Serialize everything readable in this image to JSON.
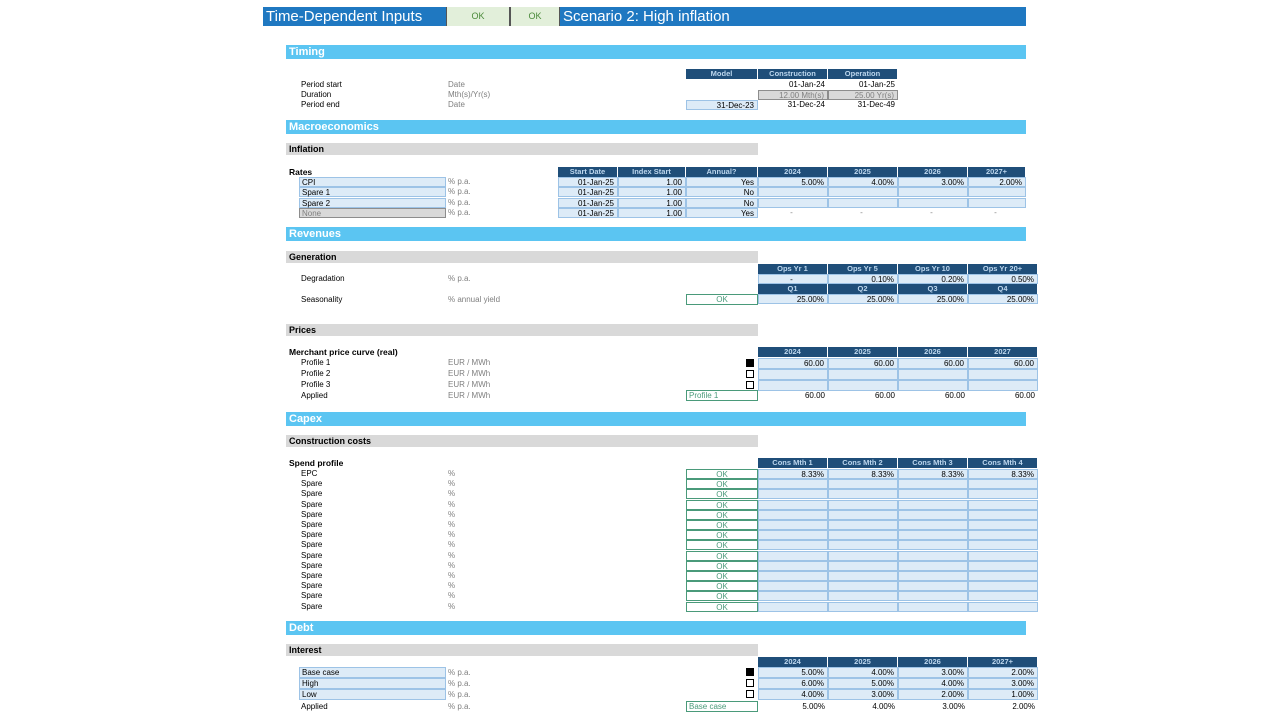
{
  "header": {
    "title": "Time-Dependent Inputs",
    "ok1": "OK",
    "ok2": "OK",
    "scenario": "Scenario 2: High inflation"
  },
  "timing": {
    "section": "Timing",
    "col_headers": [
      "Model",
      "Construction",
      "Operation"
    ],
    "rows": [
      {
        "label": "Period start",
        "unit": "Date",
        "model": "",
        "construction": "01-Jan-24",
        "operation": "01-Jan-25"
      },
      {
        "label": "Duration",
        "unit": "Mth(s)/Yr(s)",
        "model": "",
        "construction": "12.00 Mth(s)",
        "operation": "25.00 Yr(s)"
      },
      {
        "label": "Period end",
        "unit": "Date",
        "model": "31-Dec-23",
        "construction": "31-Dec-24",
        "operation": "31-Dec-49"
      }
    ]
  },
  "macro": {
    "section": "Macroeconomics",
    "sub": "Inflation",
    "group": "Rates",
    "col_headers": [
      "Start Date",
      "Index Start",
      "Annual?",
      "2024",
      "2025",
      "2026",
      "2027+"
    ],
    "rows": [
      {
        "name": "CPI",
        "unit": "% p.a.",
        "start": "01-Jan-25",
        "index": "1.00",
        "annual": "Yes",
        "v": [
          "5.00%",
          "4.00%",
          "3.00%",
          "2.00%"
        ]
      },
      {
        "name": "Spare 1",
        "unit": "% p.a.",
        "start": "01-Jan-25",
        "index": "1.00",
        "annual": "No",
        "v": [
          "",
          "",
          "",
          ""
        ]
      },
      {
        "name": "Spare 2",
        "unit": "% p.a.",
        "start": "01-Jan-25",
        "index": "1.00",
        "annual": "No",
        "v": [
          "",
          "",
          "",
          ""
        ]
      },
      {
        "name": "None",
        "unit": "% p.a.",
        "start": "01-Jan-25",
        "index": "1.00",
        "annual": "Yes",
        "v": [
          "-",
          "-",
          "-",
          "-"
        ]
      }
    ]
  },
  "revenues": {
    "section": "Revenues",
    "sub": "Generation",
    "degr_headers": [
      "Ops Yr 1",
      "Ops Yr 5",
      "Ops Yr 10",
      "Ops Yr 20+"
    ],
    "degradation": {
      "label": "Degradation",
      "unit": "% p.a.",
      "v": [
        "-",
        "0.10%",
        "0.20%",
        "0.50%"
      ]
    },
    "season_headers": [
      "Q1",
      "Q2",
      "Q3",
      "Q4"
    ],
    "seasonality": {
      "label": "Seasonality",
      "unit": "% annual yield",
      "check": "OK",
      "v": [
        "25.00%",
        "25.00%",
        "25.00%",
        "25.00%"
      ]
    },
    "prices_sub": "Prices",
    "group": "Merchant price curve (real)",
    "price_headers": [
      "2024",
      "2025",
      "2026",
      "2027"
    ],
    "profiles": [
      {
        "label": "Profile 1",
        "unit": "EUR / MWh",
        "checked": true,
        "v": [
          "60.00",
          "60.00",
          "60.00",
          "60.00"
        ]
      },
      {
        "label": "Profile 2",
        "unit": "EUR / MWh",
        "checked": false,
        "v": [
          "",
          "",
          "",
          ""
        ]
      },
      {
        "label": "Profile 3",
        "unit": "EUR / MWh",
        "checked": false,
        "v": [
          "",
          "",
          "",
          ""
        ]
      }
    ],
    "applied": {
      "label": "Applied",
      "unit": "EUR / MWh",
      "selected": "Profile 1",
      "v": [
        "60.00",
        "60.00",
        "60.00",
        "60.00"
      ]
    }
  },
  "capex": {
    "section": "Capex",
    "sub": "Construction costs",
    "group": "Spend profile",
    "headers": [
      "Cons Mth 1",
      "Cons Mth 2",
      "Cons Mth 3",
      "Cons Mth 4"
    ],
    "rows": [
      {
        "label": "EPC",
        "unit": "%",
        "check": "OK",
        "v": [
          "8.33%",
          "8.33%",
          "8.33%",
          "8.33%"
        ]
      },
      {
        "label": "Spare",
        "unit": "%",
        "check": "OK",
        "v": [
          "",
          "",
          "",
          ""
        ]
      },
      {
        "label": "Spare",
        "unit": "%",
        "check": "OK",
        "v": [
          "",
          "",
          "",
          ""
        ]
      },
      {
        "label": "Spare",
        "unit": "%",
        "check": "OK",
        "v": [
          "",
          "",
          "",
          ""
        ]
      },
      {
        "label": "Spare",
        "unit": "%",
        "check": "OK",
        "v": [
          "",
          "",
          "",
          ""
        ]
      },
      {
        "label": "Spare",
        "unit": "%",
        "check": "OK",
        "v": [
          "",
          "",
          "",
          ""
        ]
      },
      {
        "label": "Spare",
        "unit": "%",
        "check": "OK",
        "v": [
          "",
          "",
          "",
          ""
        ]
      },
      {
        "label": "Spare",
        "unit": "%",
        "check": "OK",
        "v": [
          "",
          "",
          "",
          ""
        ]
      },
      {
        "label": "Spare",
        "unit": "%",
        "check": "OK",
        "v": [
          "",
          "",
          "",
          ""
        ]
      },
      {
        "label": "Spare",
        "unit": "%",
        "check": "OK",
        "v": [
          "",
          "",
          "",
          ""
        ]
      },
      {
        "label": "Spare",
        "unit": "%",
        "check": "OK",
        "v": [
          "",
          "",
          "",
          ""
        ]
      },
      {
        "label": "Spare",
        "unit": "%",
        "check": "OK",
        "v": [
          "",
          "",
          "",
          ""
        ]
      },
      {
        "label": "Spare",
        "unit": "%",
        "check": "OK",
        "v": [
          "",
          "",
          "",
          ""
        ]
      },
      {
        "label": "Spare",
        "unit": "%",
        "check": "OK",
        "v": [
          "",
          "",
          "",
          ""
        ]
      }
    ]
  },
  "debt": {
    "section": "Debt",
    "sub": "Interest",
    "headers": [
      "2024",
      "2025",
      "2026",
      "2027+"
    ],
    "cases": [
      {
        "label": "Base case",
        "unit": "% p.a.",
        "checked": true,
        "v": [
          "5.00%",
          "4.00%",
          "3.00%",
          "2.00%"
        ]
      },
      {
        "label": "High",
        "unit": "% p.a.",
        "checked": false,
        "v": [
          "6.00%",
          "5.00%",
          "4.00%",
          "3.00%"
        ]
      },
      {
        "label": "Low",
        "unit": "% p.a.",
        "checked": false,
        "v": [
          "4.00%",
          "3.00%",
          "2.00%",
          "1.00%"
        ]
      }
    ],
    "applied": {
      "label": "Applied",
      "unit": "% p.a.",
      "selected": "Base case",
      "v": [
        "5.00%",
        "4.00%",
        "3.00%",
        "2.00%"
      ]
    }
  }
}
